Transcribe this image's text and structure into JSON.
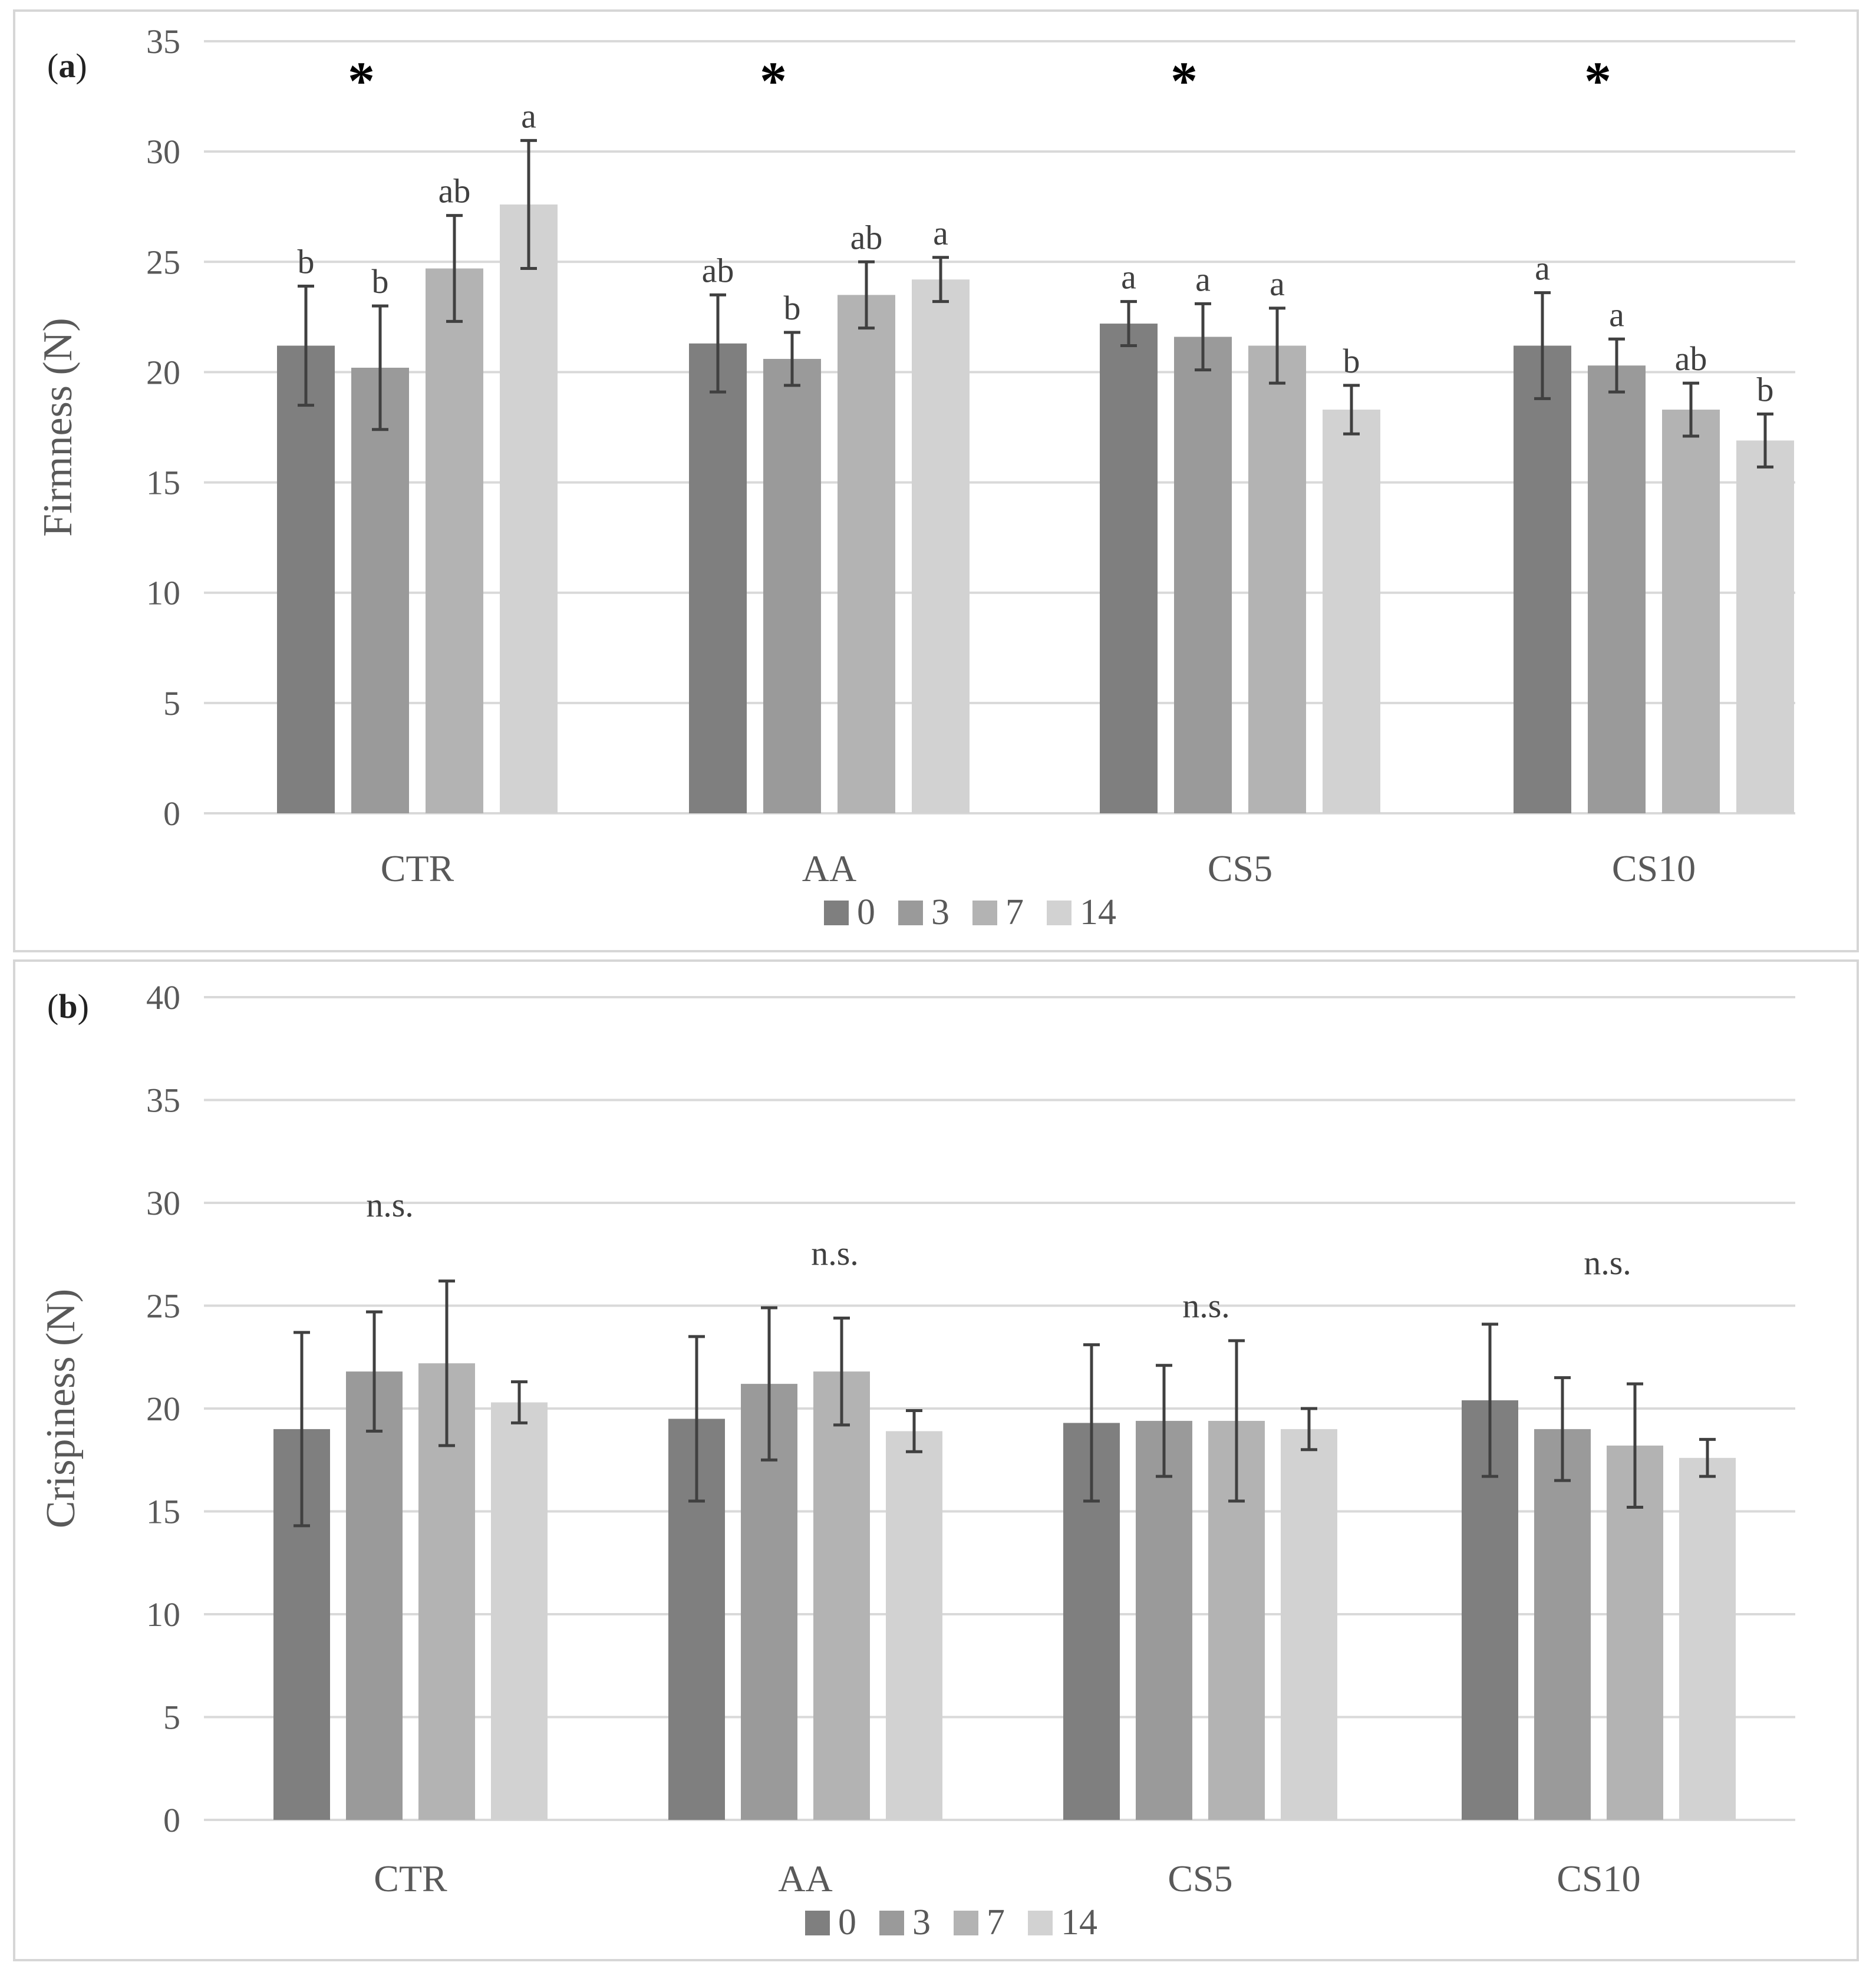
{
  "colors": {
    "series": [
      "#7f7f7f",
      "#9a9a9a",
      "#b3b3b3",
      "#d2d2d2"
    ],
    "grid": "#d9d9d9",
    "errorbar": "#404040",
    "axis_text": "#595959"
  },
  "panels": [
    {
      "label_open": "(",
      "label_letter": "a",
      "label_close": ")"
    },
    {
      "label_open": "(",
      "label_letter": "b",
      "label_close": ")"
    }
  ],
  "chart_data": [
    {
      "type": "bar",
      "panel": "a",
      "title": "",
      "xlabel": "",
      "ylabel": "Firmness (N)",
      "categories": [
        "CTR",
        "AA",
        "CS5",
        "CS10"
      ],
      "ylim": [
        0,
        35
      ],
      "yticks": [
        0,
        5,
        10,
        15,
        20,
        25,
        30,
        35
      ],
      "grid": true,
      "legend_position": "bottom",
      "series": [
        {
          "name": "0",
          "values": [
            21.2,
            21.3,
            22.2,
            21.2
          ],
          "errors": [
            2.7,
            2.2,
            1.0,
            2.4
          ],
          "letters": [
            "b",
            "ab",
            "a",
            "a"
          ]
        },
        {
          "name": "3",
          "values": [
            20.2,
            20.6,
            21.6,
            20.3
          ],
          "errors": [
            2.8,
            1.2,
            1.5,
            1.2
          ],
          "letters": [
            "b",
            "b",
            "a",
            "a"
          ]
        },
        {
          "name": "7",
          "values": [
            24.7,
            23.5,
            21.2,
            18.3
          ],
          "errors": [
            2.4,
            1.5,
            1.7,
            1.2
          ],
          "letters": [
            "ab",
            "ab",
            "a",
            "ab"
          ]
        },
        {
          "name": "14",
          "values": [
            27.6,
            24.2,
            18.3,
            16.9
          ],
          "errors": [
            2.9,
            1.0,
            1.1,
            1.2
          ],
          "letters": [
            "a",
            "a",
            "b",
            "b"
          ]
        }
      ],
      "group_annotations": [
        "*",
        "*",
        "*",
        "*"
      ]
    },
    {
      "type": "bar",
      "panel": "b",
      "title": "",
      "xlabel": "",
      "ylabel": "Crispiness (N)",
      "categories": [
        "CTR",
        "AA",
        "CS5",
        "CS10"
      ],
      "ylim": [
        0,
        40
      ],
      "yticks": [
        0,
        5,
        10,
        15,
        20,
        25,
        30,
        35,
        40
      ],
      "grid": true,
      "legend_position": "bottom",
      "series": [
        {
          "name": "0",
          "values": [
            19.0,
            19.5,
            19.3,
            20.4
          ],
          "errors": [
            4.7,
            4.0,
            3.8,
            3.7
          ]
        },
        {
          "name": "3",
          "values": [
            21.8,
            21.2,
            19.4,
            19.0
          ],
          "errors": [
            2.9,
            3.7,
            2.7,
            2.5
          ]
        },
        {
          "name": "7",
          "values": [
            22.2,
            21.8,
            19.4,
            18.2
          ],
          "errors": [
            4.0,
            2.6,
            3.9,
            3.0
          ]
        },
        {
          "name": "14",
          "values": [
            20.3,
            18.9,
            19.0,
            17.6
          ],
          "errors": [
            1.0,
            1.0,
            1.0,
            0.9
          ]
        }
      ],
      "group_annotations": [
        "n.s.",
        "n.s.",
        "n.s.",
        "n.s."
      ]
    }
  ]
}
